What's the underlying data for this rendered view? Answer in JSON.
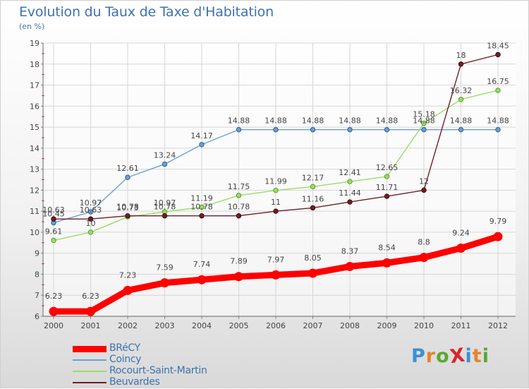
{
  "header": {
    "title": "Evolution du Taux de Taxe d'Habitation",
    "subtitle": "(en %)"
  },
  "logo": {
    "text": "ProXiti",
    "letter_colors": [
      "#3d8fd1",
      "#e8832a",
      "#5aa832",
      "#d9232d",
      "#3d8fd1",
      "#e8832a",
      "#5aa832"
    ]
  },
  "chart_data": {
    "type": "line",
    "title": "Evolution du Taux de Taxe d'Habitation",
    "ylabel": "(en %)",
    "xlabel": "",
    "x": [
      "2000",
      "2001",
      "2002",
      "2003",
      "2004",
      "2005",
      "2006",
      "2007",
      "2008",
      "2009",
      "2010",
      "2011",
      "2012"
    ],
    "ylim": [
      6,
      19
    ],
    "yticks": [
      "6",
      "7",
      "8",
      "9",
      "10",
      "11",
      "12",
      "13",
      "14",
      "15",
      "16",
      "17",
      "18",
      "19"
    ],
    "grid": true,
    "legend_position": "bottom-left",
    "series": [
      {
        "name": "BRéCY",
        "color": "#ff0000",
        "values": [
          6.23,
          6.23,
          7.23,
          7.59,
          7.74,
          7.89,
          7.97,
          8.05,
          8.37,
          8.54,
          8.8,
          9.24,
          9.79
        ],
        "labels": [
          "6.23",
          "6.23",
          "7.23",
          "7.59",
          "7.74",
          "7.89",
          "7.97",
          "8.05",
          "8.37",
          "8.54",
          "8.8",
          "9.24",
          "9.79"
        ]
      },
      {
        "name": "Coincy",
        "color": "#6b9fd4",
        "values": [
          10.45,
          10.97,
          12.61,
          13.24,
          14.17,
          14.88,
          14.88,
          14.88,
          14.88,
          14.88,
          14.88,
          14.88,
          14.88
        ],
        "labels": [
          "10.45",
          "10.97",
          "12.61",
          "13.24",
          "14.17",
          "14.88",
          "14.88",
          "14.88",
          "14.88",
          "14.88",
          "14.88",
          "14.88",
          "14.88"
        ]
      },
      {
        "name": "Rocourt-Saint-Martin",
        "color": "#99dd66",
        "values": [
          9.61,
          10,
          10.73,
          10.97,
          11.19,
          11.75,
          11.99,
          12.17,
          12.41,
          12.65,
          15.18,
          16.32,
          16.75
        ],
        "labels": [
          "9.61",
          "10",
          "10.73",
          "10.97",
          "11.19",
          "11.75",
          "11.99",
          "12.17",
          "12.41",
          "12.65",
          "15.18",
          "16.32",
          "16.75"
        ]
      },
      {
        "name": "Beuvardes",
        "color": "#6e1f26",
        "values": [
          10.63,
          10.63,
          10.78,
          10.78,
          10.78,
          10.78,
          11,
          11.16,
          11.44,
          11.71,
          12,
          18,
          18.45
        ],
        "labels": [
          "10.63",
          "10.63",
          "10.78",
          "10.78",
          "10.78",
          "10.78",
          "11",
          "11.16",
          "11.44",
          "11.71",
          "12",
          "18",
          "18.45"
        ]
      }
    ]
  }
}
